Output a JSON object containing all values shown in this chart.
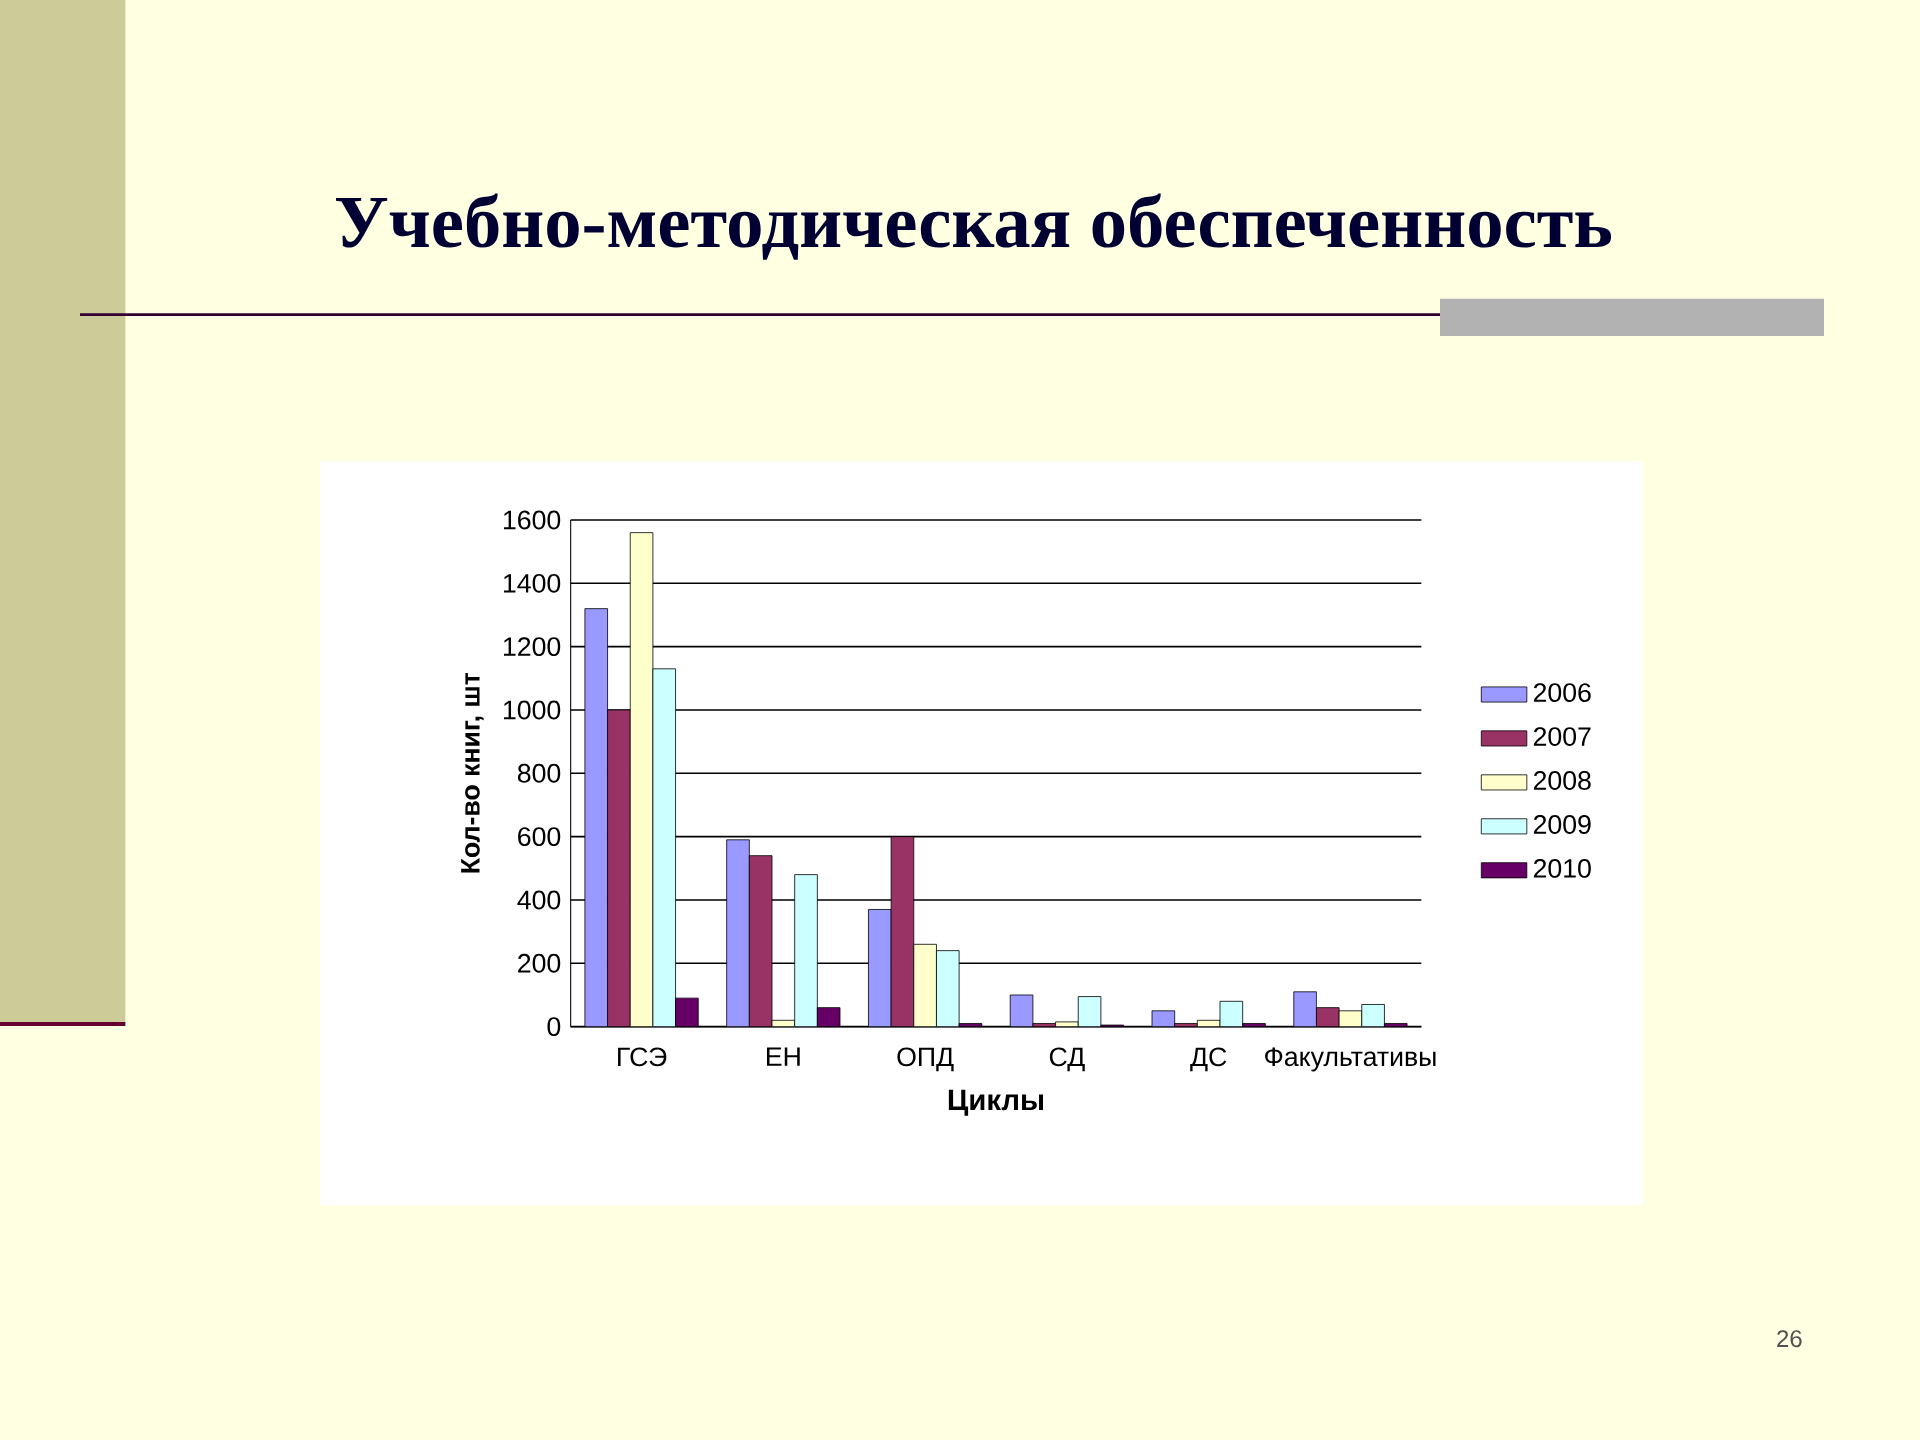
{
  "chart_data": {
    "type": "bar",
    "title": "Учебно-методическая обеспеченность",
    "xlabel": "Циклы",
    "ylabel": "Кол-во книг, шт",
    "categories": [
      "ГСЭ",
      "ЕН",
      "ОПД",
      "СД",
      "ДС",
      "Факультативы"
    ],
    "series": [
      {
        "name": "2006",
        "color": "#9999ff",
        "values": [
          1320,
          590,
          370,
          100,
          50,
          110
        ]
      },
      {
        "name": "2007",
        "color": "#993366",
        "values": [
          1000,
          540,
          600,
          10,
          10,
          60
        ]
      },
      {
        "name": "2008",
        "color": "#ffffcc",
        "values": [
          1560,
          20,
          260,
          15,
          20,
          50
        ]
      },
      {
        "name": "2009",
        "color": "#ccffff",
        "values": [
          1130,
          480,
          240,
          95,
          80,
          70
        ]
      },
      {
        "name": "2010",
        "color": "#660066",
        "values": [
          90,
          60,
          10,
          5,
          10,
          10
        ]
      }
    ],
    "ylim": [
      0,
      1600
    ],
    "yticks": [
      0,
      200,
      400,
      600,
      800,
      1000,
      1200,
      1400,
      1600
    ],
    "grid": "y",
    "legend": "right",
    "annotations": [
      "26"
    ]
  }
}
